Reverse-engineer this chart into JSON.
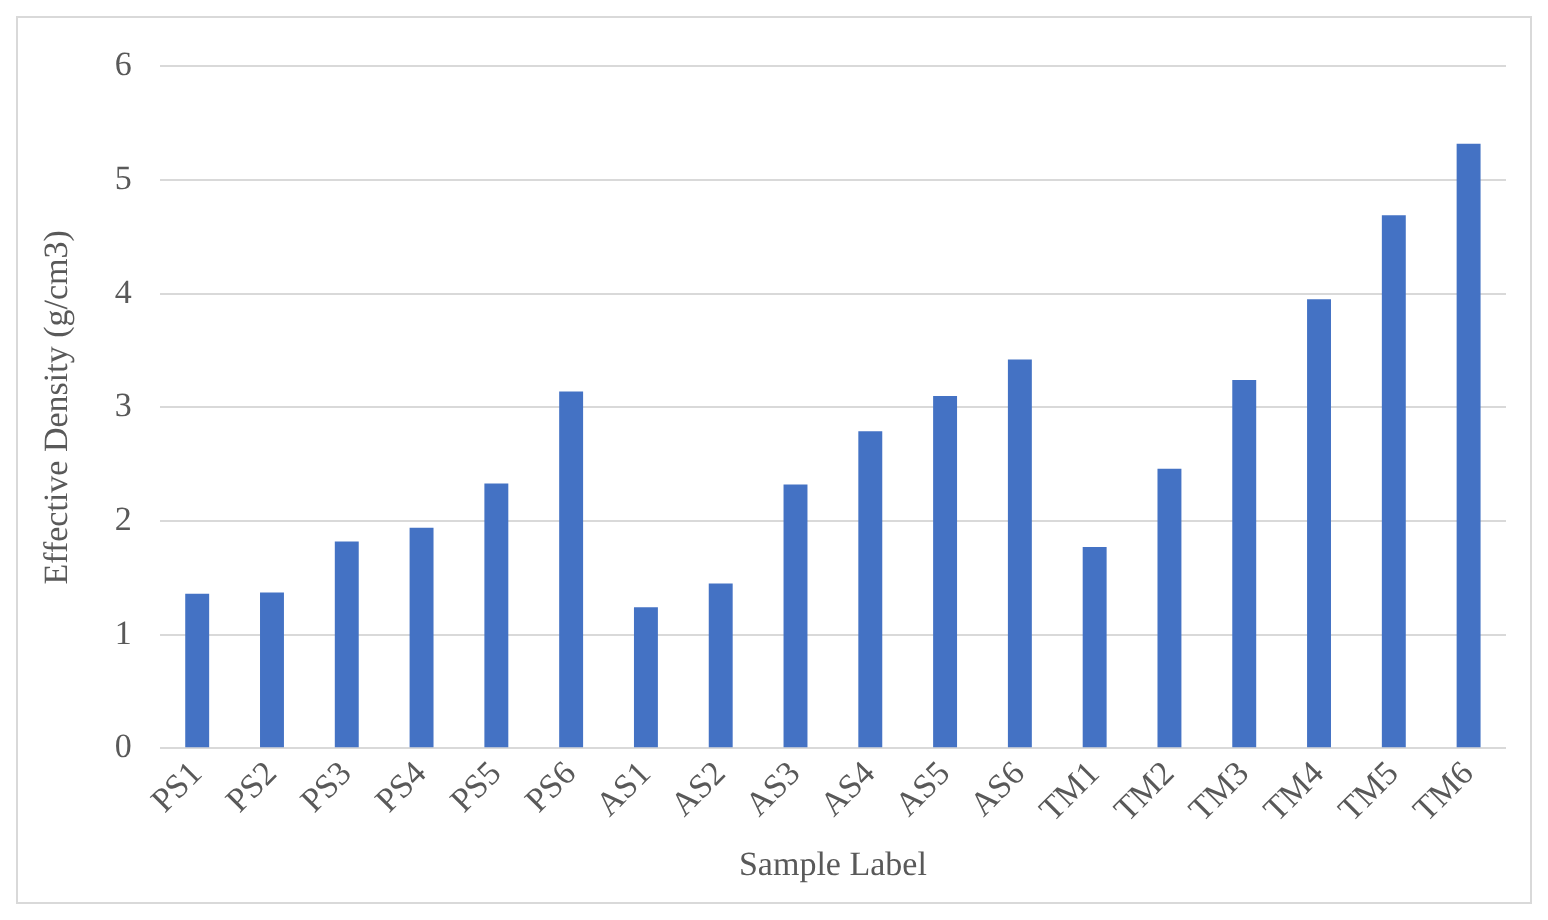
{
  "chart_data": {
    "type": "bar",
    "xlabel": "Sample Label",
    "ylabel": "Effective Density (g/cm3)",
    "categories": [
      "PS1",
      "PS2",
      "PS3",
      "PS4",
      "PS5",
      "PS6",
      "AS1",
      "AS2",
      "AS3",
      "AS4",
      "AS5",
      "AS6",
      "TM1",
      "TM2",
      "TM3",
      "TM4",
      "TM5",
      "TM6"
    ],
    "values": [
      1.36,
      1.37,
      1.82,
      1.94,
      2.33,
      3.14,
      1.24,
      1.45,
      2.32,
      2.79,
      3.1,
      3.42,
      1.77,
      2.46,
      3.24,
      3.95,
      4.69,
      5.32
    ],
    "color": "#4472c4",
    "ylim": [
      0,
      6
    ],
    "yticks": [
      0,
      1,
      2,
      3,
      4,
      5,
      6
    ],
    "grid": "y",
    "legend": false
  }
}
